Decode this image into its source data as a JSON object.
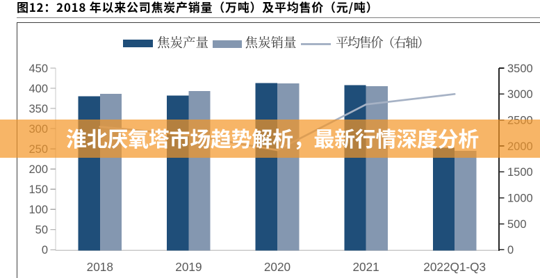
{
  "header": {
    "title": "图12：2018 年以来公司焦炭产销量（万吨）及平均售价（元/吨）"
  },
  "overlay_banner": {
    "text": "淮北厌氧塔市场趋势解析，最新行情深度分析",
    "background_color": "#F39527",
    "background_opacity": 0.7,
    "text_color": "#ffffff"
  },
  "chart_data": {
    "type": "bar",
    "subtype": "grouped bars with overlay line",
    "title": "2018 年以来公司焦炭产销量（万吨）及平均售价（元/吨）",
    "categories": [
      "2018",
      "2019",
      "2020",
      "2021",
      "2022Q1-Q3"
    ],
    "series": [
      {
        "name": "焦炭产量",
        "type": "bar",
        "axis": "left",
        "color": "#1F4E79",
        "values": [
          380,
          382,
          413,
          408,
          253
        ]
      },
      {
        "name": "焦炭销量",
        "type": "bar",
        "axis": "left",
        "color": "#8497B0",
        "values": [
          386,
          393,
          412,
          405,
          245
        ]
      },
      {
        "name": "平均售价（右轴）",
        "type": "line",
        "axis": "right",
        "color": "#A6B2C5",
        "values": [
          2370,
          2210,
          1920,
          2800,
          3000
        ]
      }
    ],
    "left_axis": {
      "min": 0,
      "max": 450,
      "step": 50,
      "ticks": [
        "450",
        "400",
        "350",
        "300",
        "250",
        "200",
        "150",
        "100",
        "50",
        "0"
      ]
    },
    "right_axis": {
      "min": 0,
      "max": 3500,
      "step": 500,
      "ticks": [
        "3500",
        "3000",
        "2500",
        "2000",
        "1500",
        "1000",
        "500",
        "0"
      ]
    },
    "legend_position": "top",
    "gridlines": false,
    "plot_background": "#ffffff",
    "axis_label_color": "#595959",
    "left_axis_line_color": "#c9c9c9",
    "right_axis_line_color": "#262626"
  }
}
